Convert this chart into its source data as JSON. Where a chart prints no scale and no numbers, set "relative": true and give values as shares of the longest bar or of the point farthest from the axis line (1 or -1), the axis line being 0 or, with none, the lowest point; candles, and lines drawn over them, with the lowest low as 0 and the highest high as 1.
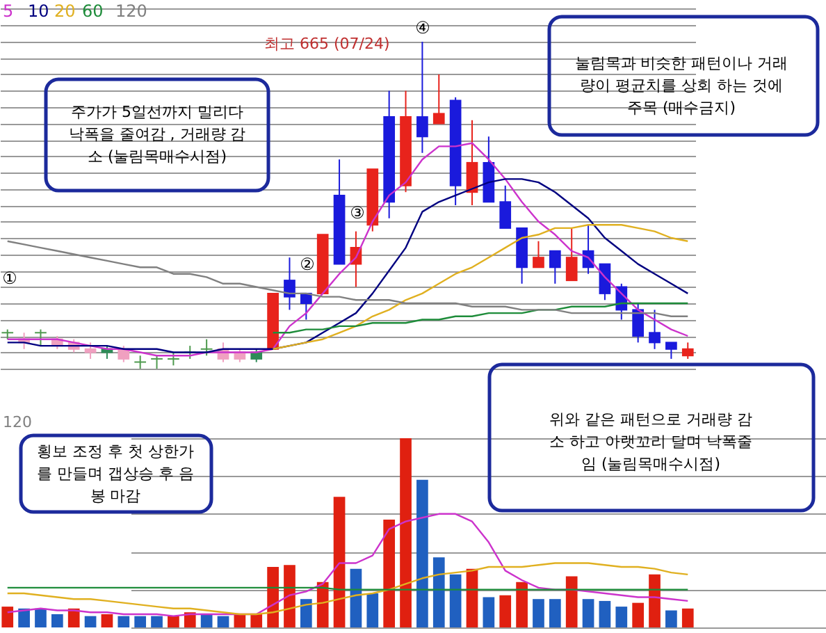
{
  "chart_data": [
    {
      "type": "candlestick",
      "relative": true,
      "grid": "y",
      "categories": [
        null,
        null,
        null,
        null,
        null,
        null,
        null,
        null,
        null,
        null,
        null,
        null,
        null,
        null,
        null,
        null,
        null,
        null,
        null,
        null,
        null,
        null,
        null,
        null,
        null,
        null,
        null,
        null,
        null,
        null,
        null,
        null,
        null,
        null,
        null,
        null,
        null,
        null,
        null,
        null,
        null,
        null
      ],
      "ohlc": [
        [
          0.11,
          0.12,
          0.09,
          0.11
        ],
        [
          0.08,
          0.11,
          0.06,
          0.09
        ],
        [
          0.11,
          0.12,
          0.07,
          0.11
        ],
        [
          0.07,
          0.1,
          0.06,
          0.09
        ],
        [
          0.06,
          0.09,
          0.05,
          0.08
        ],
        [
          0.05,
          0.08,
          0.03,
          0.06
        ],
        [
          0.05,
          0.07,
          0.03,
          0.06
        ],
        [
          0.03,
          0.07,
          0.02,
          0.06
        ],
        [
          0.02,
          0.04,
          0.0,
          0.02
        ],
        [
          0.03,
          0.04,
          0.0,
          0.03
        ],
        [
          0.03,
          0.05,
          0.01,
          0.03
        ],
        [
          0.05,
          0.07,
          0.03,
          0.05
        ],
        [
          0.06,
          0.09,
          0.04,
          0.06
        ],
        [
          0.03,
          0.08,
          0.02,
          0.06
        ],
        [
          0.03,
          0.06,
          0.02,
          0.05
        ],
        [
          0.03,
          0.06,
          0.02,
          0.05
        ],
        [
          0.06,
          0.23,
          0.06,
          0.23
        ],
        [
          0.27,
          0.34,
          0.18,
          0.22
        ],
        [
          0.23,
          0.23,
          0.15,
          0.2
        ],
        [
          0.23,
          0.41,
          0.23,
          0.41
        ],
        [
          0.53,
          0.64,
          0.32,
          0.32
        ],
        [
          0.32,
          0.42,
          0.25,
          0.37
        ],
        [
          0.44,
          0.61,
          0.42,
          0.61
        ],
        [
          0.77,
          0.85,
          0.46,
          0.51
        ],
        [
          0.56,
          0.85,
          0.54,
          0.77
        ],
        [
          0.77,
          1.0,
          0.66,
          0.71
        ],
        [
          0.75,
          0.9,
          0.75,
          0.78
        ],
        [
          0.82,
          0.83,
          0.5,
          0.56
        ],
        [
          0.54,
          0.76,
          0.5,
          0.63
        ],
        [
          0.63,
          0.71,
          0.51,
          0.51
        ],
        [
          0.51,
          0.56,
          0.43,
          0.43
        ],
        [
          0.43,
          0.43,
          0.26,
          0.31
        ],
        [
          0.31,
          0.39,
          0.31,
          0.34
        ],
        [
          0.36,
          0.36,
          0.26,
          0.31
        ],
        [
          0.27,
          0.43,
          0.27,
          0.34
        ],
        [
          0.36,
          0.44,
          0.29,
          0.31
        ],
        [
          0.32,
          0.32,
          0.21,
          0.23
        ],
        [
          0.25,
          0.26,
          0.15,
          0.18
        ],
        [
          0.18,
          0.2,
          0.08,
          0.1
        ],
        [
          0.11,
          0.18,
          0.06,
          0.08
        ],
        [
          0.08,
          0.08,
          0.03,
          0.06
        ],
        [
          0.04,
          0.08,
          0.03,
          0.06
        ]
      ],
      "colors": [
        "#4e9a4e",
        "#f0a0c0",
        "#4e9a4e",
        "#f0a0c0",
        "#f0a0c0",
        "#f0a0c0",
        "#2e8b57",
        "#f0a0c0",
        "#4e9a4e",
        "#4e9a4e",
        "#4e9a4e",
        "#4e9a4e",
        "#4e9a4e",
        "#f0a0c0",
        "#f0a0c0",
        "#2e8b57",
        "#e8231c",
        "#1a1adc",
        "#1a1adc",
        "#e8231c",
        "#1a1adc",
        "#e8231c",
        "#e8231c",
        "#1a1adc",
        "#e8231c",
        "#1a1adc",
        "#e8231c",
        "#1a1adc",
        "#e8231c",
        "#1a1adc",
        "#1a1adc",
        "#1a1adc",
        "#e8231c",
        "#1a1adc",
        "#e8231c",
        "#1a1adc",
        "#1a1adc",
        "#1a1adc",
        "#1a1adc",
        "#1a1adc",
        "#1a1adc",
        "#e8231c"
      ],
      "series": [
        {
          "name": "5",
          "type": "line",
          "color": "#cc33cc",
          "values": [
            0.09,
            0.09,
            0.09,
            0.09,
            0.08,
            0.07,
            0.06,
            0.06,
            0.05,
            0.04,
            0.04,
            0.04,
            0.05,
            0.05,
            0.05,
            0.05,
            0.06,
            0.13,
            0.17,
            0.23,
            0.29,
            0.34,
            0.45,
            0.53,
            0.57,
            0.64,
            0.68,
            0.68,
            0.69,
            0.64,
            0.58,
            0.51,
            0.45,
            0.41,
            0.36,
            0.34,
            0.28,
            0.23,
            0.18,
            0.15,
            0.12,
            0.1
          ]
        },
        {
          "name": "10",
          "type": "line",
          "color": "#000080",
          "values": [
            0.08,
            0.08,
            0.07,
            0.07,
            0.07,
            0.07,
            0.07,
            0.06,
            0.06,
            0.06,
            0.05,
            0.05,
            0.05,
            0.06,
            0.06,
            0.06,
            0.06,
            0.07,
            0.08,
            0.11,
            0.14,
            0.17,
            0.23,
            0.3,
            0.37,
            0.48,
            0.51,
            0.53,
            0.55,
            0.57,
            0.58,
            0.58,
            0.57,
            0.54,
            0.5,
            0.46,
            0.4,
            0.36,
            0.32,
            0.29,
            0.26,
            0.23
          ]
        },
        {
          "name": "20",
          "type": "line",
          "color": "#e0b020",
          "values": [
            null,
            null,
            null,
            null,
            null,
            null,
            null,
            null,
            null,
            null,
            null,
            null,
            null,
            null,
            null,
            null,
            0.06,
            0.07,
            0.08,
            0.09,
            0.11,
            0.13,
            0.16,
            0.18,
            0.21,
            0.23,
            0.26,
            0.29,
            0.31,
            0.34,
            0.37,
            0.4,
            0.41,
            0.43,
            0.43,
            0.44,
            0.44,
            0.44,
            0.43,
            0.42,
            0.4,
            0.39
          ]
        },
        {
          "name": "60",
          "type": "line",
          "color": "#1e8c3a",
          "values": [
            null,
            null,
            null,
            null,
            null,
            null,
            null,
            null,
            null,
            null,
            null,
            null,
            null,
            null,
            null,
            null,
            0.11,
            0.11,
            0.12,
            0.12,
            0.13,
            0.13,
            0.14,
            0.14,
            0.14,
            0.15,
            0.15,
            0.16,
            0.16,
            0.17,
            0.17,
            0.17,
            0.18,
            0.18,
            0.19,
            0.19,
            0.19,
            0.2,
            0.2,
            0.2,
            0.2,
            0.2
          ]
        },
        {
          "name": "120",
          "type": "line",
          "color": "#808080",
          "values": [
            0.39,
            0.38,
            0.37,
            0.36,
            0.35,
            0.34,
            0.33,
            0.32,
            0.31,
            0.31,
            0.29,
            0.29,
            0.28,
            0.26,
            0.26,
            0.25,
            0.24,
            0.23,
            0.23,
            0.22,
            0.22,
            0.21,
            0.21,
            0.21,
            0.2,
            0.2,
            0.2,
            0.2,
            0.19,
            0.19,
            0.19,
            0.18,
            0.18,
            0.18,
            0.17,
            0.17,
            0.17,
            0.17,
            0.17,
            0.17,
            0.16,
            0.16
          ]
        }
      ],
      "annotations": [
        "주가가 5일선까지 밀리다\n낙폭을 줄여감 , 거래량 감\n소 (눌림목매수시점)",
        "눌림목과 비슷한 패턴이나 거래\n량이 평균치를 상회 하는 것에\n주목 (매수금지)",
        "최고 665 (07/24)",
        "①",
        "②",
        "③",
        "④"
      ]
    },
    {
      "type": "bar",
      "relative": true,
      "grid": "y",
      "categories": [
        null,
        null,
        null,
        null,
        null,
        null,
        null,
        null,
        null,
        null,
        null,
        null,
        null,
        null,
        null,
        null,
        null,
        null,
        null,
        null,
        null,
        null,
        null,
        null,
        null,
        null,
        null,
        null,
        null,
        null,
        null,
        null,
        null,
        null,
        null,
        null,
        null,
        null,
        null,
        null,
        null,
        null
      ],
      "values": [
        0.11,
        0.1,
        0.1,
        0.07,
        0.1,
        0.06,
        0.07,
        0.06,
        0.06,
        0.06,
        0.06,
        0.08,
        0.07,
        0.06,
        0.07,
        0.07,
        0.32,
        0.33,
        0.15,
        0.24,
        0.69,
        0.31,
        0.18,
        0.57,
        1.0,
        0.78,
        0.37,
        0.28,
        0.31,
        0.16,
        0.17,
        0.24,
        0.15,
        0.15,
        0.27,
        0.15,
        0.14,
        0.11,
        0.13,
        0.28,
        0.09,
        0.1
      ],
      "colors": [
        "#e02010",
        "#2060c0",
        "#2060c0",
        "#2060c0",
        "#e02010",
        "#2060c0",
        "#e02010",
        "#2060c0",
        "#2060c0",
        "#2060c0",
        "#e02010",
        "#e02010",
        "#2060c0",
        "#2060c0",
        "#e02010",
        "#e02010",
        "#e02010",
        "#e02010",
        "#2060c0",
        "#e02010",
        "#e02010",
        "#2060c0",
        "#2060c0",
        "#e02010",
        "#e02010",
        "#2060c0",
        "#2060c0",
        "#2060c0",
        "#e02010",
        "#2060c0",
        "#e02010",
        "#e02010",
        "#2060c0",
        "#2060c0",
        "#e02010",
        "#2060c0",
        "#2060c0",
        "#2060c0",
        "#e02010",
        "#e02010",
        "#2060c0",
        "#e02010"
      ],
      "series": [
        {
          "type": "line",
          "color": "#cc33cc",
          "values": [
            0.08,
            0.09,
            0.1,
            0.09,
            0.09,
            0.08,
            0.08,
            0.07,
            0.07,
            0.07,
            0.06,
            0.07,
            0.07,
            0.07,
            0.07,
            0.07,
            0.12,
            0.17,
            0.19,
            0.23,
            0.34,
            0.34,
            0.38,
            0.52,
            0.56,
            0.58,
            0.6,
            0.6,
            0.56,
            0.45,
            0.3,
            0.25,
            0.21,
            0.2,
            0.2,
            0.19,
            0.18,
            0.17,
            0.16,
            0.16,
            0.15,
            0.14
          ]
        },
        {
          "type": "line",
          "color": "#e0b020",
          "values": [
            0.18,
            0.18,
            0.17,
            0.16,
            0.15,
            0.15,
            0.14,
            0.13,
            0.12,
            0.11,
            0.1,
            0.1,
            0.09,
            0.08,
            0.07,
            0.07,
            0.08,
            0.1,
            0.12,
            0.13,
            0.15,
            0.17,
            0.18,
            0.2,
            0.23,
            0.26,
            0.28,
            0.29,
            0.3,
            0.32,
            0.32,
            0.32,
            0.33,
            0.34,
            0.34,
            0.34,
            0.33,
            0.32,
            0.32,
            0.31,
            0.29,
            0.28
          ]
        },
        {
          "type": "line",
          "color": "#1e8c3a",
          "values": [
            0.21,
            0.21,
            0.21,
            0.21,
            0.21,
            0.21,
            0.21,
            0.21,
            0.21,
            0.21,
            0.21,
            0.21,
            0.21,
            0.21,
            0.21,
            0.21,
            0.21,
            0.21,
            0.21,
            0.21,
            0.2,
            0.2,
            0.2,
            0.2,
            0.2,
            0.2,
            0.2,
            0.2,
            0.2,
            0.2,
            0.2,
            0.2,
            0.2,
            0.2,
            0.2,
            0.2,
            0.2,
            0.2,
            0.2,
            0.2,
            0.2,
            0.2
          ]
        }
      ],
      "annotations": [
        "위와 같은 패턴으로 거래량 감\n소 하고 아랫꼬리 달며 낙폭줄\n임 (눌림목매수시점)",
        "횡보 조정 후 첫 상한가\n를 만들며 갭상승 후 음\n봉 마감",
        "120"
      ]
    }
  ]
}
